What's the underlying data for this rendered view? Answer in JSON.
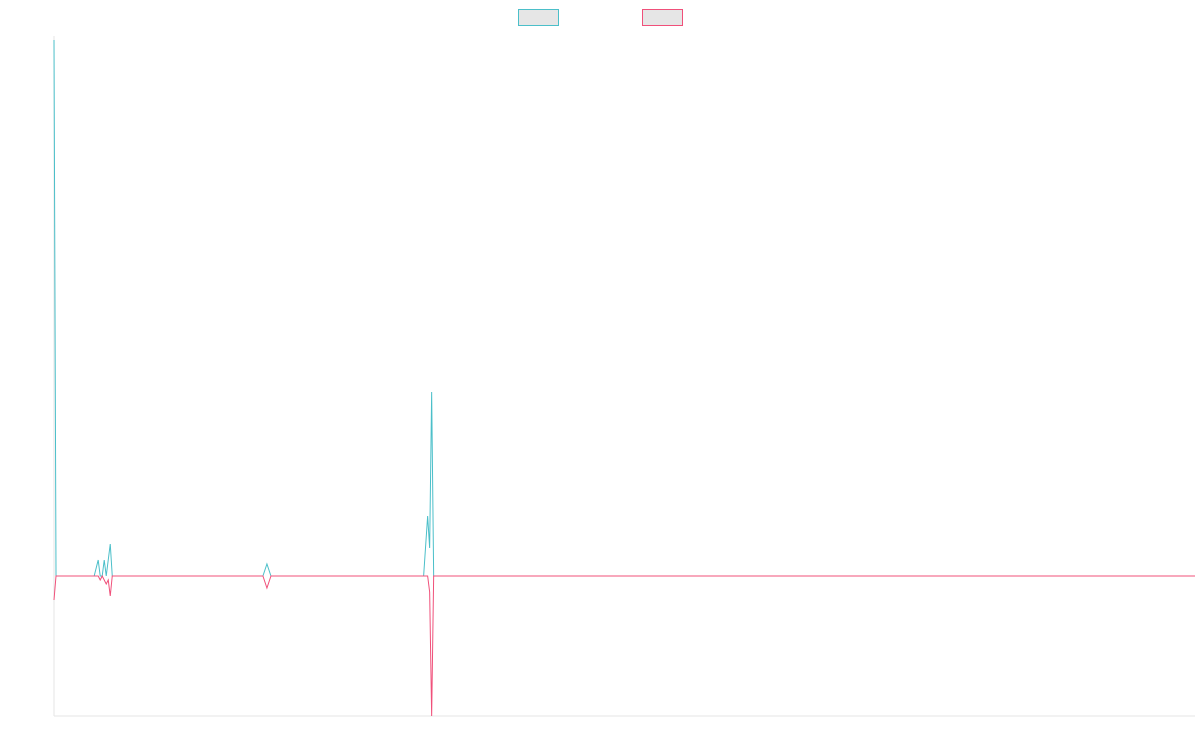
{
  "colors": {
    "series_a": "#4bbfc9",
    "series_b": "#f0507a",
    "axis": "#e6e6e6",
    "swatch_fill": "#e6e6e6"
  },
  "chart_data": {
    "type": "line",
    "title": "",
    "xlabel": "",
    "ylabel": "",
    "grid": false,
    "legend": "top-center",
    "xlim": [
      0,
      284
    ],
    "ylim": [
      -35,
      135
    ],
    "series": [
      {
        "name": "",
        "color": "#4bbfc9",
        "points": [
          [
            0,
            134
          ],
          [
            0.5,
            0
          ],
          [
            10,
            0
          ],
          [
            11,
            4
          ],
          [
            11.5,
            0
          ],
          [
            12,
            0
          ],
          [
            12.5,
            4
          ],
          [
            13,
            0
          ],
          [
            13.5,
            4
          ],
          [
            14,
            8
          ],
          [
            14.5,
            0
          ],
          [
            52,
            0
          ],
          [
            53,
            3
          ],
          [
            54,
            0
          ],
          [
            92,
            0
          ],
          [
            93,
            15
          ],
          [
            93.5,
            7
          ],
          [
            94,
            46
          ],
          [
            94.5,
            0
          ],
          [
            284,
            0
          ]
        ]
      },
      {
        "name": "",
        "color": "#f0507a",
        "points": [
          [
            0,
            -6
          ],
          [
            0.5,
            0
          ],
          [
            10,
            0
          ],
          [
            11,
            0
          ],
          [
            11.5,
            -1
          ],
          [
            12,
            0
          ],
          [
            12.5,
            -1
          ],
          [
            13,
            -2
          ],
          [
            13.5,
            -1
          ],
          [
            14,
            -5
          ],
          [
            14.5,
            0
          ],
          [
            52,
            0
          ],
          [
            53,
            -3
          ],
          [
            54,
            0
          ],
          [
            92,
            0
          ],
          [
            93,
            0
          ],
          [
            93.5,
            -4
          ],
          [
            94,
            -35
          ],
          [
            94.5,
            0
          ],
          [
            284,
            0
          ]
        ]
      }
    ]
  }
}
